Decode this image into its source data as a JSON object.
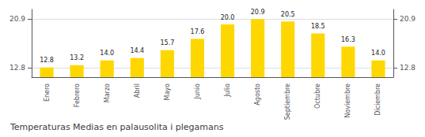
{
  "chart_data": {
    "type": "bar",
    "title": "Temperaturas Medias en palausolita i plegamans",
    "categories": [
      "Enero",
      "Febrero",
      "Marzo",
      "Abril",
      "Mayo",
      "Junio",
      "Julio",
      "Agosto",
      "Septiembre",
      "Octubre",
      "Noviembre",
      "Diciembre"
    ],
    "values": [
      12.8,
      13.2,
      14.0,
      14.4,
      15.7,
      17.6,
      20.0,
      20.9,
      20.5,
      18.5,
      16.3,
      14.0
    ],
    "value_labels": [
      "12.8",
      "13.2",
      "14.0",
      "14.4",
      "15.7",
      "17.6",
      "20.0",
      "20.9",
      "20.5",
      "18.5",
      "16.3",
      "14.0"
    ],
    "data_labels": true,
    "color": "#FFD700",
    "ylim": [
      11.2,
      22.5
    ],
    "yticks": [
      12.8,
      20.9
    ],
    "y2lim": [
      11.2,
      22.5
    ],
    "y2ticks": [
      12.8,
      20.9
    ],
    "grid": true
  }
}
